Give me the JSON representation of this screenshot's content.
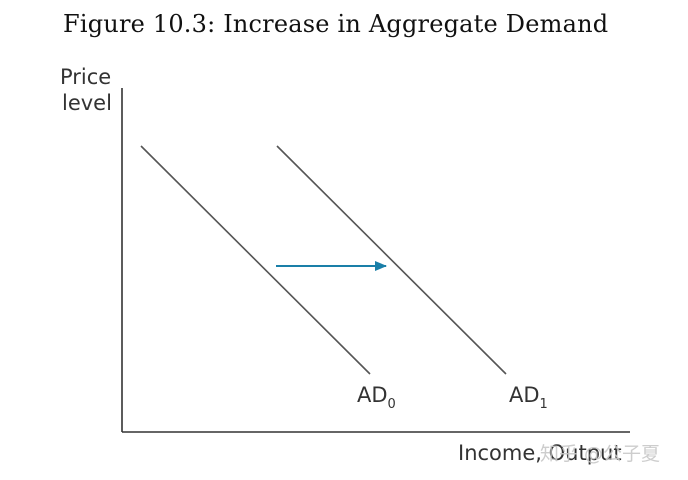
{
  "figure": {
    "title": "Figure 10.3: Increase in Aggregate Demand"
  },
  "axes": {
    "y_label_line1": "Price",
    "y_label_line2": "level",
    "x_label": "Income, Output"
  },
  "curves": [
    {
      "name": "AD",
      "subscript": "0"
    },
    {
      "name": "AD",
      "subscript": "1"
    }
  ],
  "shift_arrow": {
    "direction": "right",
    "color": "#1a7fa8"
  },
  "colors": {
    "curve": "#555555",
    "axis": "#333333"
  },
  "watermark": {
    "text": "知乎 @公子夏"
  }
}
